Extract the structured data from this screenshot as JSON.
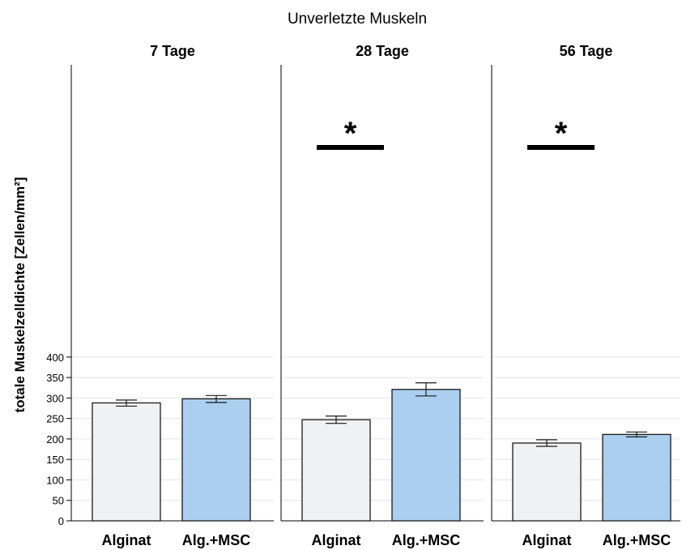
{
  "chart_data": {
    "type": "bar",
    "title": "Unverletzte Muskeln",
    "ylabel": "totale Muskelzelldichte [Zellen/mm²]",
    "xlabel": "",
    "ylim": [
      0,
      440
    ],
    "yticks": [
      0,
      50,
      100,
      150,
      200,
      250,
      300,
      350,
      400
    ],
    "grid": true,
    "categories": [
      "Alginat",
      "Alg.+MSC"
    ],
    "bar_colors": [
      "#eff2f2",
      "#aacfef"
    ],
    "panels": [
      {
        "label": "7 Tage",
        "values": [
          288,
          298
        ],
        "error": [
          [
            280,
            295
          ],
          [
            289,
            306
          ]
        ],
        "significance": null
      },
      {
        "label": "28 Tage",
        "values": [
          247,
          321
        ],
        "error": [
          [
            238,
            256
          ],
          [
            305,
            337
          ]
        ],
        "significance": "*"
      },
      {
        "label": "56 Tage",
        "values": [
          190,
          211
        ],
        "error": [
          [
            182,
            198
          ],
          [
            205,
            217
          ]
        ],
        "significance": "*"
      }
    ]
  }
}
